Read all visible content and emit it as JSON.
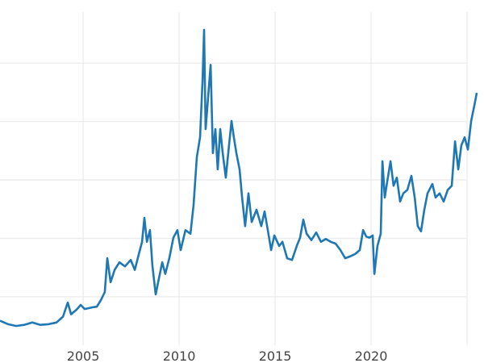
{
  "chart_data": {
    "type": "line",
    "title": "",
    "xlabel": "",
    "ylabel": "",
    "xlim": [
      2000.67,
      2025.88
    ],
    "ylim": [
      1.7,
      60.8
    ],
    "grid": true,
    "x_ticks": [
      2005,
      2010,
      2015,
      2020,
      2025
    ],
    "x_tick_labels": [
      "2005",
      "2010",
      "2015",
      "2020",
      ""
    ],
    "y_gridlines": [
      10,
      20,
      30,
      40,
      50
    ],
    "line_color": "#1f77b4",
    "series": [
      {
        "x": [
          2000.67,
          2001.09,
          2001.51,
          2001.93,
          2002.35,
          2002.77,
          2003.19,
          2003.61,
          2003.95,
          2004.2,
          2004.37,
          2004.66,
          2004.87,
          2005.08,
          2005.5,
          2005.71,
          2005.92,
          2006.13,
          2006.26,
          2006.43,
          2006.64,
          2006.89,
          2007.18,
          2007.48,
          2007.69,
          2007.9,
          2008.07,
          2008.19,
          2008.32,
          2008.48,
          2008.61,
          2008.78,
          2008.95,
          2009.12,
          2009.28,
          2009.49,
          2009.7,
          2009.91,
          2010.08,
          2010.33,
          2010.59,
          2010.75,
          2010.92,
          2011.09,
          2011.22,
          2011.3,
          2011.38,
          2011.51,
          2011.64,
          2011.76,
          2011.89,
          2012.01,
          2012.14,
          2012.27,
          2012.43,
          2012.6,
          2012.73,
          2012.85,
          2012.98,
          2013.15,
          2013.28,
          2013.44,
          2013.61,
          2013.78,
          2014.03,
          2014.28,
          2014.45,
          2014.62,
          2014.79,
          2014.96,
          2015.21,
          2015.38,
          2015.63,
          2015.88,
          2016.13,
          2016.3,
          2016.47,
          2016.64,
          2016.89,
          2017.14,
          2017.39,
          2017.64,
          2017.9,
          2018.15,
          2018.4,
          2018.65,
          2018.9,
          2019.16,
          2019.41,
          2019.58,
          2019.75,
          2019.91,
          2020.08,
          2020.17,
          2020.33,
          2020.5,
          2020.59,
          2020.71,
          2020.84,
          2021.01,
          2021.17,
          2021.34,
          2021.51,
          2021.68,
          2021.89,
          2022.1,
          2022.27,
          2022.43,
          2022.6,
          2022.77,
          2022.94,
          2023.19,
          2023.36,
          2023.57,
          2023.78,
          2023.99,
          2024.2,
          2024.37,
          2024.54,
          2024.7,
          2024.87,
          2025.04,
          2025.21,
          2025.38,
          2025.5
        ],
        "y": [
          5.9,
          5.3,
          5.0,
          5.2,
          5.6,
          5.2,
          5.3,
          5.6,
          6.6,
          9.0,
          7.0,
          7.8,
          8.6,
          7.9,
          8.2,
          8.3,
          9.4,
          10.8,
          16.6,
          12.5,
          14.6,
          15.9,
          15.2,
          16.3,
          14.6,
          17.3,
          19.4,
          23.5,
          19.4,
          21.4,
          15.2,
          10.4,
          13.2,
          15.9,
          13.9,
          16.6,
          20.1,
          21.4,
          18.0,
          21.4,
          20.8,
          25.6,
          33.9,
          37.3,
          47.0,
          55.7,
          38.7,
          44.2,
          49.7,
          34.6,
          38.7,
          31.8,
          38.7,
          34.6,
          30.4,
          35.9,
          40.1,
          37.3,
          34.6,
          31.8,
          27.0,
          22.1,
          27.7,
          22.8,
          24.9,
          22.1,
          24.6,
          21.4,
          18.0,
          20.5,
          18.7,
          19.4,
          16.6,
          16.3,
          18.7,
          20.1,
          23.2,
          20.8,
          19.7,
          21.0,
          19.4,
          19.9,
          19.4,
          19.1,
          18.0,
          16.6,
          16.9,
          17.3,
          18.0,
          21.4,
          20.3,
          20.1,
          20.5,
          13.9,
          18.7,
          20.8,
          33.2,
          27.0,
          29.7,
          33.2,
          29.0,
          30.4,
          26.3,
          27.7,
          28.3,
          30.7,
          27.0,
          22.1,
          21.2,
          24.9,
          27.7,
          29.3,
          27.0,
          27.7,
          26.3,
          28.3,
          29.0,
          36.6,
          31.8,
          35.9,
          37.3,
          35.2,
          40.1,
          42.8,
          44.9
        ]
      }
    ]
  }
}
